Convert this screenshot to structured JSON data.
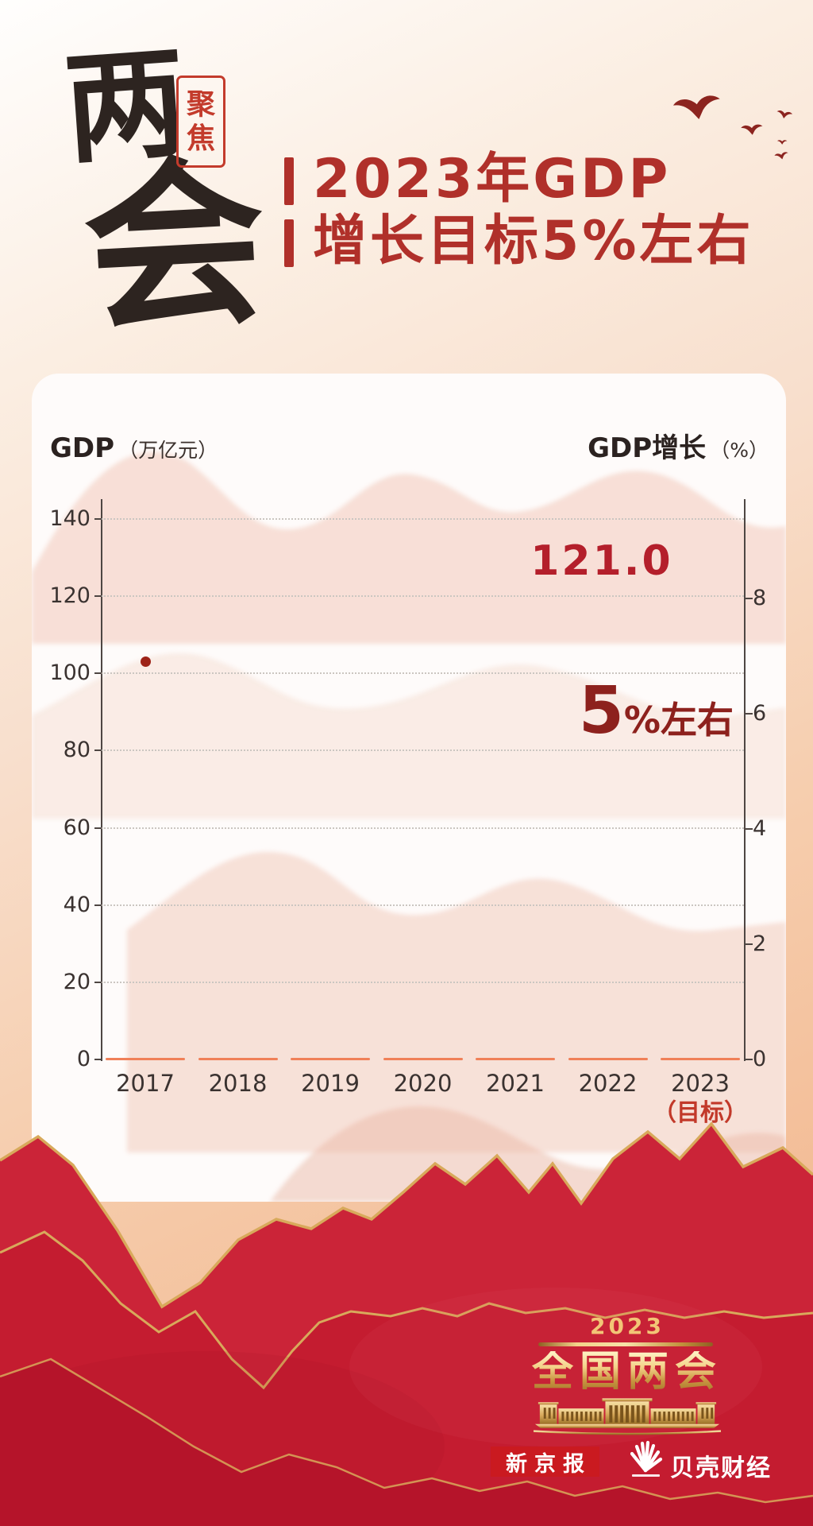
{
  "poster": {
    "calligraphy_chars": [
      "两",
      "会"
    ],
    "seal_chars": [
      "聚",
      "焦"
    ],
    "title_line1": "2023年GDP",
    "title_line2": "增长目标5%左右"
  },
  "chart_data": {
    "type": "scatter",
    "grid": "dotted-horizontal",
    "legend": "none",
    "left_axis": {
      "label": "GDP",
      "unit": "（万亿元）",
      "ticks": [
        140,
        120,
        100,
        80,
        60,
        40,
        20,
        0
      ],
      "range": [
        0,
        150
      ]
    },
    "right_axis": {
      "label": "GDP增长",
      "unit": "（%）",
      "ticks": [
        8,
        6,
        4,
        2,
        0
      ],
      "range": [
        0,
        9.5
      ]
    },
    "categories": [
      "2017",
      "2018",
      "2019",
      "2020",
      "2021",
      "2022",
      "2023"
    ],
    "x_note": {
      "text": "（目标）",
      "under_year": "2023"
    },
    "points": [
      {
        "year": "2017",
        "value": 103
      }
    ],
    "annotations": {
      "gdp_value": "121.0",
      "target_big": "5",
      "target_small": "%左右"
    }
  },
  "footer": {
    "badge_year": "2023",
    "badge_title": "全国两会",
    "brand_left": "新京报",
    "brand_right": "贝壳财经"
  },
  "icons": {
    "birds": "birds-icon",
    "building": "great-hall-icon",
    "shell": "shell-logo-icon"
  },
  "colors": {
    "title_red": "#b0302a",
    "value_red": "#b41f2b",
    "target_red": "#8d211d",
    "note_red": "#c2392a",
    "seal_red": "#c33b2c",
    "dash_orange": "#f08058",
    "gold": "#d8a95b",
    "mountain_red": "#c41c30",
    "brand_bg_red": "#ca1a20"
  }
}
